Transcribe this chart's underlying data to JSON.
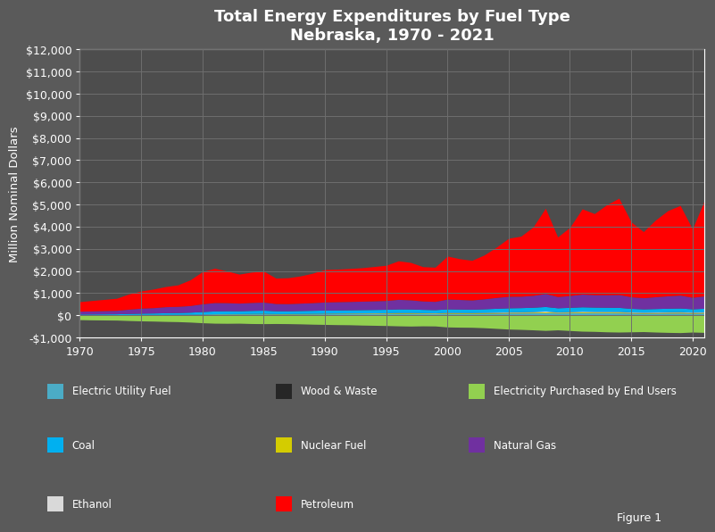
{
  "title": "Total Energy Expenditures by Fuel Type\nNebraska, 1970 - 2021",
  "ylabel": "Million Nominal Dollars",
  "background_color": "#5a5a5a",
  "plot_bg_color": "#4d4d4d",
  "grid_color": "#6e6e6e",
  "text_color": "#ffffff",
  "years": [
    1970,
    1971,
    1972,
    1973,
    1974,
    1975,
    1976,
    1977,
    1978,
    1979,
    1980,
    1981,
    1982,
    1983,
    1984,
    1985,
    1986,
    1987,
    1988,
    1989,
    1990,
    1991,
    1992,
    1993,
    1994,
    1995,
    1996,
    1997,
    1998,
    1999,
    2000,
    2001,
    2002,
    2003,
    2004,
    2005,
    2006,
    2007,
    2008,
    2009,
    2010,
    2011,
    2012,
    2013,
    2014,
    2015,
    2016,
    2017,
    2018,
    2019,
    2020,
    2021
  ],
  "series": {
    "Electricity Purchased by End Users": {
      "color": "#92d050",
      "values": [
        -200,
        -210,
        -215,
        -220,
        -240,
        -255,
        -265,
        -280,
        -290,
        -310,
        -340,
        -360,
        -365,
        -360,
        -375,
        -380,
        -375,
        -380,
        -390,
        -405,
        -415,
        -425,
        -430,
        -445,
        -455,
        -465,
        -480,
        -490,
        -480,
        -485,
        -530,
        -540,
        -545,
        -565,
        -595,
        -625,
        -640,
        -660,
        -685,
        -660,
        -690,
        -720,
        -730,
        -750,
        -760,
        -750,
        -740,
        -760,
        -775,
        -785,
        -760,
        -775
      ]
    },
    "Wood & Waste": {
      "color": "#262626",
      "values": [
        5,
        5,
        6,
        6,
        7,
        8,
        8,
        9,
        9,
        10,
        11,
        12,
        12,
        12,
        13,
        13,
        11,
        11,
        12,
        12,
        13,
        13,
        14,
        14,
        15,
        15,
        16,
        16,
        15,
        15,
        17,
        17,
        17,
        18,
        19,
        20,
        20,
        21,
        22,
        20,
        21,
        22,
        22,
        23,
        23,
        22,
        21,
        22,
        23,
        23,
        21,
        23
      ]
    },
    "Electric Utility Fuel": {
      "color": "#4bacc6",
      "values": [
        15,
        16,
        17,
        18,
        22,
        26,
        28,
        31,
        33,
        38,
        44,
        48,
        48,
        46,
        49,
        51,
        44,
        43,
        46,
        49,
        52,
        54,
        56,
        58,
        60,
        62,
        67,
        65,
        60,
        57,
        66,
        64,
        62,
        66,
        72,
        78,
        80,
        84,
        90,
        80,
        84,
        90,
        87,
        85,
        83,
        73,
        67,
        70,
        73,
        76,
        67,
        73
      ]
    },
    "Nuclear Fuel": {
      "color": "#d4cc00",
      "values": [
        0,
        0,
        0,
        0,
        0,
        0,
        0,
        0,
        0,
        0,
        0,
        6,
        9,
        12,
        14,
        17,
        14,
        15,
        16,
        17,
        18,
        19,
        20,
        21,
        22,
        23,
        24,
        25,
        24,
        23,
        26,
        27,
        26,
        28,
        30,
        32,
        32,
        34,
        37,
        30,
        32,
        35,
        33,
        34,
        35,
        30,
        28,
        30,
        33,
        34,
        30,
        33
      ]
    },
    "Ethanol": {
      "color": "#d9d9d9",
      "values": [
        0,
        0,
        0,
        0,
        0,
        0,
        0,
        0,
        0,
        0,
        0,
        0,
        0,
        0,
        2,
        3,
        2,
        3,
        4,
        5,
        6,
        7,
        8,
        9,
        10,
        12,
        15,
        16,
        15,
        14,
        18,
        17,
        16,
        18,
        20,
        22,
        25,
        28,
        40,
        22,
        28,
        33,
        31,
        30,
        29,
        24,
        22,
        24,
        26,
        27,
        22,
        24
      ]
    },
    "Coal": {
      "color": "#00b0f0",
      "values": [
        32,
        34,
        36,
        39,
        49,
        57,
        63,
        71,
        77,
        88,
        110,
        127,
        133,
        130,
        138,
        143,
        130,
        127,
        133,
        138,
        143,
        145,
        147,
        150,
        152,
        155,
        163,
        160,
        149,
        143,
        160,
        155,
        149,
        160,
        171,
        182,
        185,
        193,
        204,
        182,
        190,
        199,
        193,
        187,
        182,
        160,
        149,
        155,
        160,
        165,
        149,
        160
      ]
    },
    "Natural Gas": {
      "color": "#7030a0",
      "values": [
        130,
        140,
        150,
        158,
        196,
        229,
        242,
        274,
        281,
        300,
        352,
        378,
        365,
        346,
        359,
        366,
        326,
        324,
        333,
        346,
        365,
        372,
        375,
        381,
        389,
        398,
        431,
        411,
        379,
        372,
        444,
        431,
        418,
        450,
        490,
        522,
        516,
        536,
        588,
        509,
        535,
        574,
        562,
        568,
        581,
        522,
        503,
        535,
        561,
        581,
        522,
        561
      ]
    },
    "Petroleum": {
      "color": "#ff0000",
      "values": [
        430,
        470,
        505,
        545,
        685,
        775,
        840,
        910,
        970,
        1160,
        1450,
        1550,
        1430,
        1310,
        1370,
        1400,
        1150,
        1170,
        1230,
        1330,
        1470,
        1470,
        1490,
        1510,
        1550,
        1590,
        1740,
        1690,
        1550,
        1545,
        1940,
        1840,
        1790,
        1980,
        2270,
        2620,
        2710,
        3090,
        3850,
        2690,
        3080,
        3850,
        3660,
        4060,
        4350,
        3380,
        2985,
        3470,
        3850,
        4050,
        3080,
        4340
      ]
    }
  },
  "ylim": [
    -1000,
    12000
  ],
  "yticks": [
    -1000,
    0,
    1000,
    2000,
    3000,
    4000,
    5000,
    6000,
    7000,
    8000,
    9000,
    10000,
    11000,
    12000
  ],
  "xlim": [
    1970,
    2021
  ],
  "xticks": [
    1970,
    1975,
    1980,
    1985,
    1990,
    1995,
    2000,
    2005,
    2010,
    2015,
    2020
  ],
  "stack_order": [
    "Electricity Purchased by End Users",
    "Wood & Waste",
    "Electric Utility Fuel",
    "Nuclear Fuel",
    "Ethanol",
    "Coal",
    "Natural Gas",
    "Petroleum"
  ],
  "legend_layout": [
    [
      "Electric Utility Fuel",
      "Wood & Waste",
      "Electricity Purchased by End Users"
    ],
    [
      "Coal",
      "Nuclear Fuel",
      "Natural Gas"
    ],
    [
      "Ethanol",
      "Petroleum",
      null
    ]
  ],
  "figure1_text": "Figure 1"
}
